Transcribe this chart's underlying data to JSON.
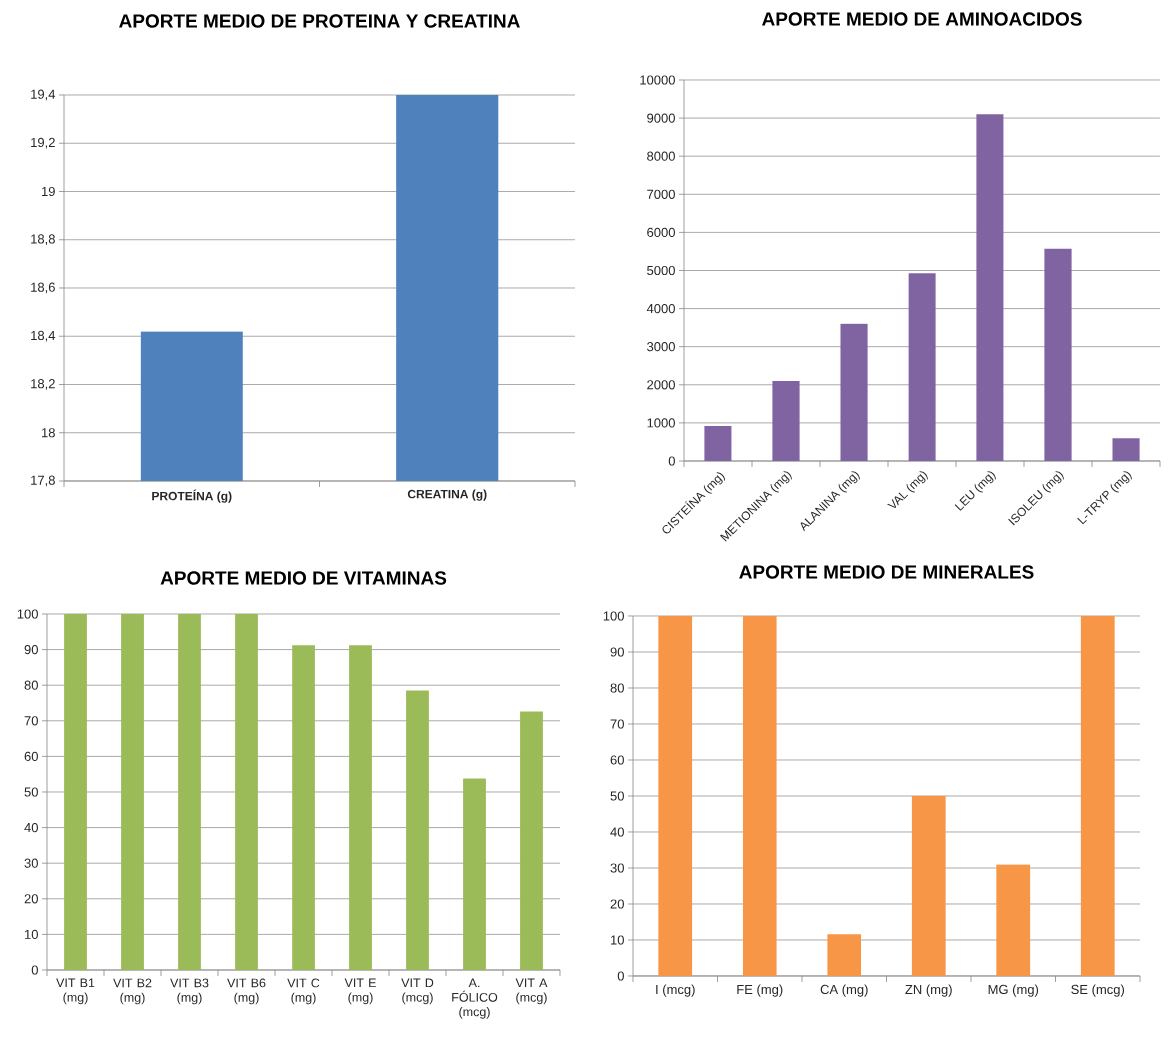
{
  "chart_data": [
    {
      "type": "bar",
      "title": "APORTE MEDIO DE PROTEINA Y CREATINA",
      "categories": [
        "PROTEÍNA (g)",
        "CREATINA (g)"
      ],
      "values": [
        18.42,
        19.4
      ],
      "color": "#4f81bd",
      "ylim": [
        17.8,
        19.4
      ],
      "yticks": [
        {
          "value": 17.8,
          "label": "17,8"
        },
        18,
        {
          "value": 18.2,
          "label": "18,2"
        },
        {
          "value": 18.4,
          "label": "18,4"
        },
        {
          "value": 18.6,
          "label": "18,6"
        },
        {
          "value": 18.8,
          "label": "18,8"
        },
        19,
        {
          "value": 19.2,
          "label": "19,2"
        },
        {
          "value": 19.4,
          "label": "19,4"
        }
      ],
      "grid": "y"
    },
    {
      "type": "bar",
      "title": "APORTE MEDIO DE AMINOACIDOS",
      "categories": [
        "CISTEÍNA (mg)",
        "METIONINA (mg)",
        "ALANINA (mg)",
        "VAL (mg)",
        "LEU (mg)",
        "ISOLEU (mg)",
        "L-TRYP (mg)"
      ],
      "values": [
        920,
        2100,
        3600,
        4930,
        9100,
        5570,
        600
      ],
      "color": "#8064a2",
      "ylim": [
        0,
        10000
      ],
      "yticks": [
        0,
        1000,
        2000,
        3000,
        4000,
        5000,
        6000,
        7000,
        8000,
        9000,
        10000
      ],
      "grid": "y"
    },
    {
      "type": "bar",
      "title": "APORTE MEDIO DE VITAMINAS",
      "categories": [
        "VIT B1 (mg)",
        "VIT B2 (mg)",
        "VIT B3 (mg)",
        "VIT B6 (mg)",
        "VIT C (mg)",
        "VIT E (mg)",
        "VIT D (mcg)",
        "A. FÓLICO (mcg)",
        "VIT A (mcg)"
      ],
      "values": [
        100,
        100,
        100,
        100,
        91.2,
        91.2,
        78.5,
        53.8,
        72.6
      ],
      "color": "#9bbb59",
      "ylim": [
        0,
        100
      ],
      "yticks": [
        0,
        10,
        20,
        30,
        40,
        50,
        60,
        70,
        80,
        90,
        100
      ],
      "grid": "y"
    },
    {
      "type": "bar",
      "title": "APORTE MEDIO DE MINERALES",
      "categories": [
        "I (mcg)",
        "FE (mg)",
        "CA (mg)",
        "ZN (mg)",
        "MG (mg)",
        "SE (mcg)"
      ],
      "values": [
        100,
        100,
        11.6,
        50,
        31,
        100
      ],
      "color": "#f79646",
      "ylim": [
        0,
        100
      ],
      "yticks": [
        0,
        10,
        20,
        30,
        40,
        50,
        60,
        70,
        80,
        90,
        100
      ],
      "grid": "y"
    }
  ]
}
